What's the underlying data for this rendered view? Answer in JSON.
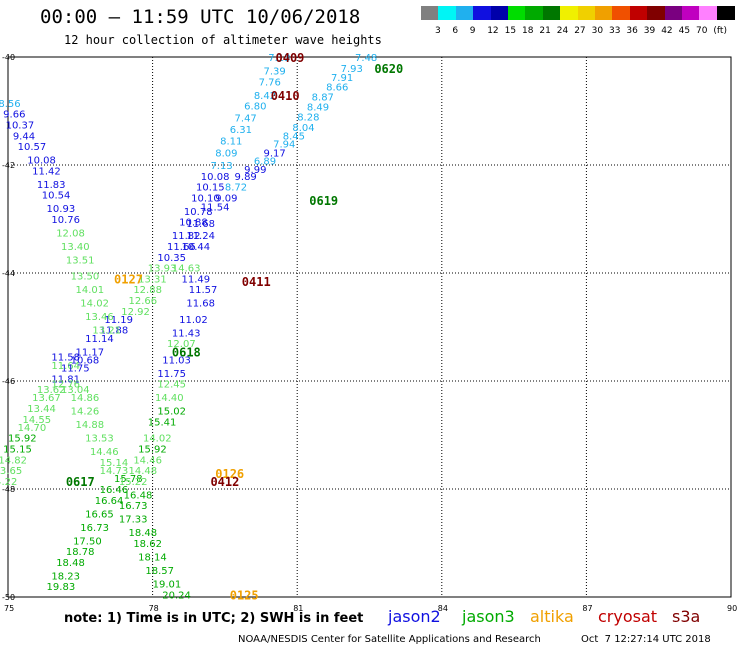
{
  "header": {
    "title": "00:00 – 11:59 UTC 10/06/2018",
    "subtitle": "12 hour collection of altimeter wave heights"
  },
  "legend": {
    "colors": [
      "#808080",
      "#00f5f5",
      "#20b0ee",
      "#1010e0",
      "#0000aa",
      "#00dd00",
      "#00aa00",
      "#007700",
      "#f0f000",
      "#f0d000",
      "#f0a000",
      "#f05000",
      "#c00000",
      "#800000",
      "#7a0080",
      "#c000c0",
      "#ff80ff",
      "#000000"
    ],
    "labels": [
      "3",
      "6",
      "9",
      "12",
      "15",
      "18",
      "21",
      "24",
      "27",
      "30",
      "33",
      "36",
      "39",
      "42",
      "45",
      "70",
      "(ft)"
    ]
  },
  "axes": {
    "x_labels": [
      "75",
      "78",
      "81",
      "84",
      "87",
      "90"
    ],
    "y_labels": [
      "-40",
      "-42",
      "-44",
      "-46",
      "-48",
      "-50"
    ]
  },
  "chart_data": {
    "type": "map",
    "grid": true,
    "lon_range": [
      75,
      90
    ],
    "lat_range": [
      -50,
      -40
    ],
    "pass_labels": [
      {
        "text": "0409",
        "color": "#800000",
        "lon": 80.55,
        "lat": -40.0
      },
      {
        "text": "0620",
        "color": "#007700",
        "lon": 82.6,
        "lat": -40.2
      },
      {
        "text": "0410",
        "color": "#800000",
        "lon": 80.45,
        "lat": -40.7
      },
      {
        "text": "0619",
        "color": "#007700",
        "lon": 81.25,
        "lat": -42.65
      },
      {
        "text": "0127",
        "color": "#f0a000",
        "lon": 77.2,
        "lat": -44.1
      },
      {
        "text": "0411",
        "color": "#800000",
        "lon": 79.85,
        "lat": -44.15
      },
      {
        "text": "0618",
        "color": "#007700",
        "lon": 78.4,
        "lat": -45.45
      },
      {
        "text": "0126",
        "color": "#f0a000",
        "lon": 79.3,
        "lat": -47.7
      },
      {
        "text": "0412",
        "color": "#800000",
        "lon": 79.2,
        "lat": -47.85
      },
      {
        "text": "0617",
        "color": "#007700",
        "lon": 76.2,
        "lat": -47.85
      },
      {
        "text": "0125",
        "color": "#f0a000",
        "lon": 79.6,
        "lat": -49.95
      }
    ],
    "observations": [
      {
        "text": "7.13",
        "color": "#20b0ee",
        "lon": 80.4,
        "lat": -40.0
      },
      {
        "text": "7.48",
        "color": "#20b0ee",
        "lon": 82.2,
        "lat": -40.0
      },
      {
        "text": "7.39",
        "color": "#20b0ee",
        "lon": 80.3,
        "lat": -40.25
      },
      {
        "text": "7.93",
        "color": "#20b0ee",
        "lon": 81.9,
        "lat": -40.2
      },
      {
        "text": "7.91",
        "color": "#20b0ee",
        "lon": 81.7,
        "lat": -40.37
      },
      {
        "text": "7.76",
        "color": "#20b0ee",
        "lon": 80.2,
        "lat": -40.45
      },
      {
        "text": "8.66",
        "color": "#20b0ee",
        "lon": 81.6,
        "lat": -40.55
      },
      {
        "text": "8.42",
        "color": "#20b0ee",
        "lon": 80.1,
        "lat": -40.7
      },
      {
        "text": "8.87",
        "color": "#20b0ee",
        "lon": 81.3,
        "lat": -40.73
      },
      {
        "text": "6.80",
        "color": "#20b0ee",
        "lon": 79.9,
        "lat": -40.9
      },
      {
        "text": "8.49",
        "color": "#20b0ee",
        "lon": 81.2,
        "lat": -40.92
      },
      {
        "text": "8.28",
        "color": "#20b0ee",
        "lon": 81.0,
        "lat": -41.1
      },
      {
        "text": "7.47",
        "color": "#20b0ee",
        "lon": 79.7,
        "lat": -41.12
      },
      {
        "text": "8.04",
        "color": "#20b0ee",
        "lon": 80.9,
        "lat": -41.3
      },
      {
        "text": "6.31",
        "color": "#20b0ee",
        "lon": 79.6,
        "lat": -41.33
      },
      {
        "text": "8.45",
        "color": "#20b0ee",
        "lon": 80.7,
        "lat": -41.45
      },
      {
        "text": "8.11",
        "color": "#20b0ee",
        "lon": 79.4,
        "lat": -41.55
      },
      {
        "text": "7.94",
        "color": "#20b0ee",
        "lon": 80.5,
        "lat": -41.6
      },
      {
        "text": "8.09",
        "color": "#20b0ee",
        "lon": 79.3,
        "lat": -41.77
      },
      {
        "text": "9.17",
        "color": "#1010e0",
        "lon": 80.3,
        "lat": -41.77
      },
      {
        "text": "6.89",
        "color": "#20b0ee",
        "lon": 80.1,
        "lat": -41.92
      },
      {
        "text": "7.13",
        "color": "#20b0ee",
        "lon": 79.2,
        "lat": -42.0
      },
      {
        "text": "9.99",
        "color": "#1010e0",
        "lon": 79.9,
        "lat": -42.07
      },
      {
        "text": "10.08",
        "color": "#1010e0",
        "lon": 79.0,
        "lat": -42.2
      },
      {
        "text": "9.89",
        "color": "#1010e0",
        "lon": 79.7,
        "lat": -42.2
      },
      {
        "text": "10.15",
        "color": "#1010e0",
        "lon": 78.9,
        "lat": -42.4
      },
      {
        "text": "8.72",
        "color": "#20b0ee",
        "lon": 79.5,
        "lat": -42.4
      },
      {
        "text": "10.10",
        "color": "#1010e0",
        "lon": 78.8,
        "lat": -42.6
      },
      {
        "text": "9.09",
        "color": "#1010e0",
        "lon": 79.3,
        "lat": -42.6
      },
      {
        "text": "11.54",
        "color": "#1010e0",
        "lon": 79.0,
        "lat": -42.77
      },
      {
        "text": "10.78",
        "color": "#1010e0",
        "lon": 78.65,
        "lat": -42.85
      },
      {
        "text": "10.88",
        "color": "#1010e0",
        "lon": 78.55,
        "lat": -43.05
      },
      {
        "text": "11.68",
        "color": "#1010e0",
        "lon": 78.7,
        "lat": -43.07
      },
      {
        "text": "11.82",
        "color": "#1010e0",
        "lon": 78.4,
        "lat": -43.3
      },
      {
        "text": "11.24",
        "color": "#1010e0",
        "lon": 78.7,
        "lat": -43.3
      },
      {
        "text": "11.66",
        "color": "#1010e0",
        "lon": 78.3,
        "lat": -43.5
      },
      {
        "text": "10.44",
        "color": "#1010e0",
        "lon": 78.6,
        "lat": -43.5
      },
      {
        "text": "10.35",
        "color": "#1010e0",
        "lon": 78.1,
        "lat": -43.7
      },
      {
        "text": "13.93",
        "color": "#60e060",
        "lon": 77.9,
        "lat": -43.9
      },
      {
        "text": "14.63",
        "color": "#60e060",
        "lon": 78.4,
        "lat": -43.9
      },
      {
        "text": "13.31",
        "color": "#60e060",
        "lon": 77.7,
        "lat": -44.1
      },
      {
        "text": "11.49",
        "color": "#1010e0",
        "lon": 78.6,
        "lat": -44.1
      },
      {
        "text": "12.88",
        "color": "#60e060",
        "lon": 77.6,
        "lat": -44.3
      },
      {
        "text": "11.57",
        "color": "#1010e0",
        "lon": 78.75,
        "lat": -44.3
      },
      {
        "text": "12.66",
        "color": "#60e060",
        "lon": 77.5,
        "lat": -44.5
      },
      {
        "text": "11.68",
        "color": "#1010e0",
        "lon": 78.7,
        "lat": -44.55
      },
      {
        "text": "12.92",
        "color": "#60e060",
        "lon": 77.35,
        "lat": -44.7
      },
      {
        "text": "11.19",
        "color": "#1010e0",
        "lon": 77.0,
        "lat": -44.85
      },
      {
        "text": "11.02",
        "color": "#1010e0",
        "lon": 78.55,
        "lat": -44.85
      },
      {
        "text": "11.88",
        "color": "#1010e0",
        "lon": 76.9,
        "lat": -45.05
      },
      {
        "text": "11.43",
        "color": "#1010e0",
        "lon": 78.4,
        "lat": -45.1
      },
      {
        "text": "11.14",
        "color": "#1010e0",
        "lon": 76.6,
        "lat": -45.2
      },
      {
        "text": "12.07",
        "color": "#60e060",
        "lon": 78.3,
        "lat": -45.3
      },
      {
        "text": "11.17",
        "color": "#1010e0",
        "lon": 76.4,
        "lat": -45.45
      },
      {
        "text": "11.58",
        "color": "#1010e0",
        "lon": 75.9,
        "lat": -45.55
      },
      {
        "text": "10.68",
        "color": "#1010e0",
        "lon": 76.3,
        "lat": -45.6
      },
      {
        "text": "11.03",
        "color": "#1010e0",
        "lon": 78.2,
        "lat": -45.6
      },
      {
        "text": "11.64",
        "color": "#60e060",
        "lon": 75.9,
        "lat": -45.7
      },
      {
        "text": "11.75",
        "color": "#1010e0",
        "lon": 76.1,
        "lat": -45.75
      },
      {
        "text": "11.75",
        "color": "#1010e0",
        "lon": 78.1,
        "lat": -45.85
      },
      {
        "text": "11.81",
        "color": "#1010e0",
        "lon": 75.9,
        "lat": -45.95
      },
      {
        "text": "12.76",
        "color": "#60e060",
        "lon": 75.9,
        "lat": -46.05
      },
      {
        "text": "12.45",
        "color": "#60e060",
        "lon": 78.1,
        "lat": -46.05
      },
      {
        "text": "13.62",
        "color": "#60e060",
        "lon": 75.6,
        "lat": -46.15
      },
      {
        "text": "13.04",
        "color": "#60e060",
        "lon": 76.1,
        "lat": -46.15
      },
      {
        "text": "13.67",
        "color": "#60e060",
        "lon": 75.5,
        "lat": -46.3
      },
      {
        "text": "14.86",
        "color": "#60e060",
        "lon": 76.3,
        "lat": -46.3
      },
      {
        "text": "14.40",
        "color": "#60e060",
        "lon": 78.05,
        "lat": -46.3
      },
      {
        "text": "13.44",
        "color": "#60e060",
        "lon": 75.4,
        "lat": -46.5
      },
      {
        "text": "14.26",
        "color": "#60e060",
        "lon": 76.3,
        "lat": -46.55
      },
      {
        "text": "15.02",
        "color": "#00aa00",
        "lon": 78.1,
        "lat": -46.55
      },
      {
        "text": "14.55",
        "color": "#60e060",
        "lon": 75.3,
        "lat": -46.7
      },
      {
        "text": "15.41",
        "color": "#00aa00",
        "lon": 77.9,
        "lat": -46.75
      },
      {
        "text": "14.70",
        "color": "#60e060",
        "lon": 75.2,
        "lat": -46.85
      },
      {
        "text": "14.88",
        "color": "#60e060",
        "lon": 76.4,
        "lat": -46.8
      },
      {
        "text": "15.92",
        "color": "#00aa00",
        "lon": 75.0,
        "lat": -47.05
      },
      {
        "text": "13.53",
        "color": "#60e060",
        "lon": 76.6,
        "lat": -47.05
      },
      {
        "text": "14.02",
        "color": "#60e060",
        "lon": 77.8,
        "lat": -47.05
      },
      {
        "text": "15.15",
        "color": "#00aa00",
        "lon": 74.9,
        "lat": -47.25
      },
      {
        "text": "14.46",
        "color": "#60e060",
        "lon": 76.7,
        "lat": -47.3
      },
      {
        "text": "15.92",
        "color": "#00aa00",
        "lon": 77.7,
        "lat": -47.25
      },
      {
        "text": "14.82",
        "color": "#60e060",
        "lon": 74.8,
        "lat": -47.45
      },
      {
        "text": "15.14",
        "color": "#60e060",
        "lon": 76.9,
        "lat": -47.5
      },
      {
        "text": "14.46",
        "color": "#60e060",
        "lon": 77.6,
        "lat": -47.45
      },
      {
        "text": "13.65",
        "color": "#60e060",
        "lon": 74.7,
        "lat": -47.65
      },
      {
        "text": "14.73",
        "color": "#60e060",
        "lon": 76.9,
        "lat": -47.65
      },
      {
        "text": "14.48",
        "color": "#60e060",
        "lon": 77.5,
        "lat": -47.65
      },
      {
        "text": "14.22",
        "color": "#60e060",
        "lon": 74.6,
        "lat": -47.85
      },
      {
        "text": "15.78",
        "color": "#00aa00",
        "lon": 77.2,
        "lat": -47.8
      },
      {
        "text": "15.22",
        "color": "#60e060",
        "lon": 77.3,
        "lat": -47.85
      },
      {
        "text": "16.46",
        "color": "#00aa00",
        "lon": 76.9,
        "lat": -48.0
      },
      {
        "text": "16.48",
        "color": "#00aa00",
        "lon": 77.4,
        "lat": -48.1
      },
      {
        "text": "16.64",
        "color": "#00aa00",
        "lon": 76.8,
        "lat": -48.2
      },
      {
        "text": "16.73",
        "color": "#00aa00",
        "lon": 77.3,
        "lat": -48.3
      },
      {
        "text": "16.65",
        "color": "#00aa00",
        "lon": 76.6,
        "lat": -48.45
      },
      {
        "text": "17.33",
        "color": "#00aa00",
        "lon": 77.3,
        "lat": -48.55
      },
      {
        "text": "16.73",
        "color": "#00aa00",
        "lon": 76.5,
        "lat": -48.7
      },
      {
        "text": "18.48",
        "color": "#00aa00",
        "lon": 77.5,
        "lat": -48.8
      },
      {
        "text": "17.50",
        "color": "#00aa00",
        "lon": 76.35,
        "lat": -48.95
      },
      {
        "text": "18.62",
        "color": "#00aa00",
        "lon": 77.6,
        "lat": -49.0
      },
      {
        "text": "18.78",
        "color": "#00aa00",
        "lon": 76.2,
        "lat": -49.15
      },
      {
        "text": "18.14",
        "color": "#00aa00",
        "lon": 77.7,
        "lat": -49.25
      },
      {
        "text": "18.48",
        "color": "#00aa00",
        "lon": 76.0,
        "lat": -49.35
      },
      {
        "text": "18.57",
        "color": "#00aa00",
        "lon": 77.85,
        "lat": -49.5
      },
      {
        "text": "18.23",
        "color": "#00aa00",
        "lon": 75.9,
        "lat": -49.6
      },
      {
        "text": "19.01",
        "color": "#00aa00",
        "lon": 78.0,
        "lat": -49.75
      },
      {
        "text": "19.83",
        "color": "#00aa00",
        "lon": 75.8,
        "lat": -49.8
      },
      {
        "text": "20.24",
        "color": "#00aa00",
        "lon": 78.2,
        "lat": -49.95
      },
      {
        "text": "8.56",
        "color": "#20b0ee",
        "lon": 74.8,
        "lat": -40.85
      },
      {
        "text": "9.66",
        "color": "#1010e0",
        "lon": 74.9,
        "lat": -41.05
      },
      {
        "text": "10.37",
        "color": "#1010e0",
        "lon": 74.95,
        "lat": -41.25
      },
      {
        "text": "9.44",
        "color": "#1010e0",
        "lon": 75.1,
        "lat": -41.45
      },
      {
        "text": "10.57",
        "color": "#1010e0",
        "lon": 75.2,
        "lat": -41.65
      },
      {
        "text": "10.08",
        "color": "#1010e0",
        "lon": 75.4,
        "lat": -41.9
      },
      {
        "text": "11.42",
        "color": "#1010e0",
        "lon": 75.5,
        "lat": -42.1
      },
      {
        "text": "11.83",
        "color": "#1010e0",
        "lon": 75.6,
        "lat": -42.35
      },
      {
        "text": "10.54",
        "color": "#1010e0",
        "lon": 75.7,
        "lat": -42.55
      },
      {
        "text": "10.93",
        "color": "#1010e0",
        "lon": 75.8,
        "lat": -42.8
      },
      {
        "text": "10.76",
        "color": "#1010e0",
        "lon": 75.9,
        "lat": -43.0
      },
      {
        "text": "12.08",
        "color": "#60e060",
        "lon": 76.0,
        "lat": -43.25
      },
      {
        "text": "13.40",
        "color": "#60e060",
        "lon": 76.1,
        "lat": -43.5
      },
      {
        "text": "13.51",
        "color": "#60e060",
        "lon": 76.2,
        "lat": -43.75
      },
      {
        "text": "13.50",
        "color": "#60e060",
        "lon": 76.3,
        "lat": -44.05
      },
      {
        "text": "14.01",
        "color": "#60e060",
        "lon": 76.4,
        "lat": -44.3
      },
      {
        "text": "14.02",
        "color": "#60e060",
        "lon": 76.5,
        "lat": -44.55
      },
      {
        "text": "13.46",
        "color": "#60e060",
        "lon": 76.6,
        "lat": -44.8
      },
      {
        "text": "13.21",
        "color": "#60e060",
        "lon": 76.75,
        "lat": -45.05
      }
    ]
  },
  "footer": {
    "note": "note: 1) Time is in UTC; 2) SWH is in feet",
    "satellites": [
      {
        "name": "jason2",
        "color": "#1010e0"
      },
      {
        "name": "jason3",
        "color": "#00aa00"
      },
      {
        "name": "altika",
        "color": "#f0a000"
      },
      {
        "name": "cryosat",
        "color": "#c00000"
      },
      {
        "name": "s3a",
        "color": "#800000"
      }
    ],
    "credit": "NOAA/NESDIS Center for Satellite Applications and Research",
    "timestamp": "Oct  7 12:27:14 UTC 2018"
  }
}
